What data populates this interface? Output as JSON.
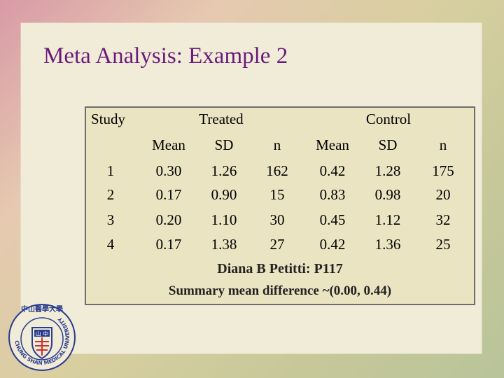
{
  "slide": {
    "title": "Meta Analysis: Example 2"
  },
  "table": {
    "study_label": "Study",
    "treated_label": "Treated",
    "control_label": "Control",
    "subheaders": [
      "Mean",
      "SD",
      "n",
      "Mean",
      "SD",
      "n"
    ],
    "rows": [
      [
        "1",
        "0.30",
        "1.26",
        "162",
        "0.42",
        "1.28",
        "175"
      ],
      [
        "2",
        "0.17",
        "0.90",
        "15",
        "0.83",
        "0.98",
        "20"
      ],
      [
        "3",
        "0.20",
        "1.10",
        "30",
        "0.45",
        "1.12",
        "32"
      ],
      [
        "4",
        "0.17",
        "1.38",
        "27",
        "0.42",
        "1.36",
        "25"
      ]
    ]
  },
  "footer": {
    "source": "Diana B Petitti: P117",
    "summary": "Summary mean difference ~(0.00, 0.44)"
  },
  "logo": {
    "text": "CHUNG SHAN MEDICAL UNIVERSITY",
    "chinese_text": "中山醫學大學",
    "colors": {
      "ring": "#2a3c8f",
      "accent": "#c8322e"
    }
  }
}
